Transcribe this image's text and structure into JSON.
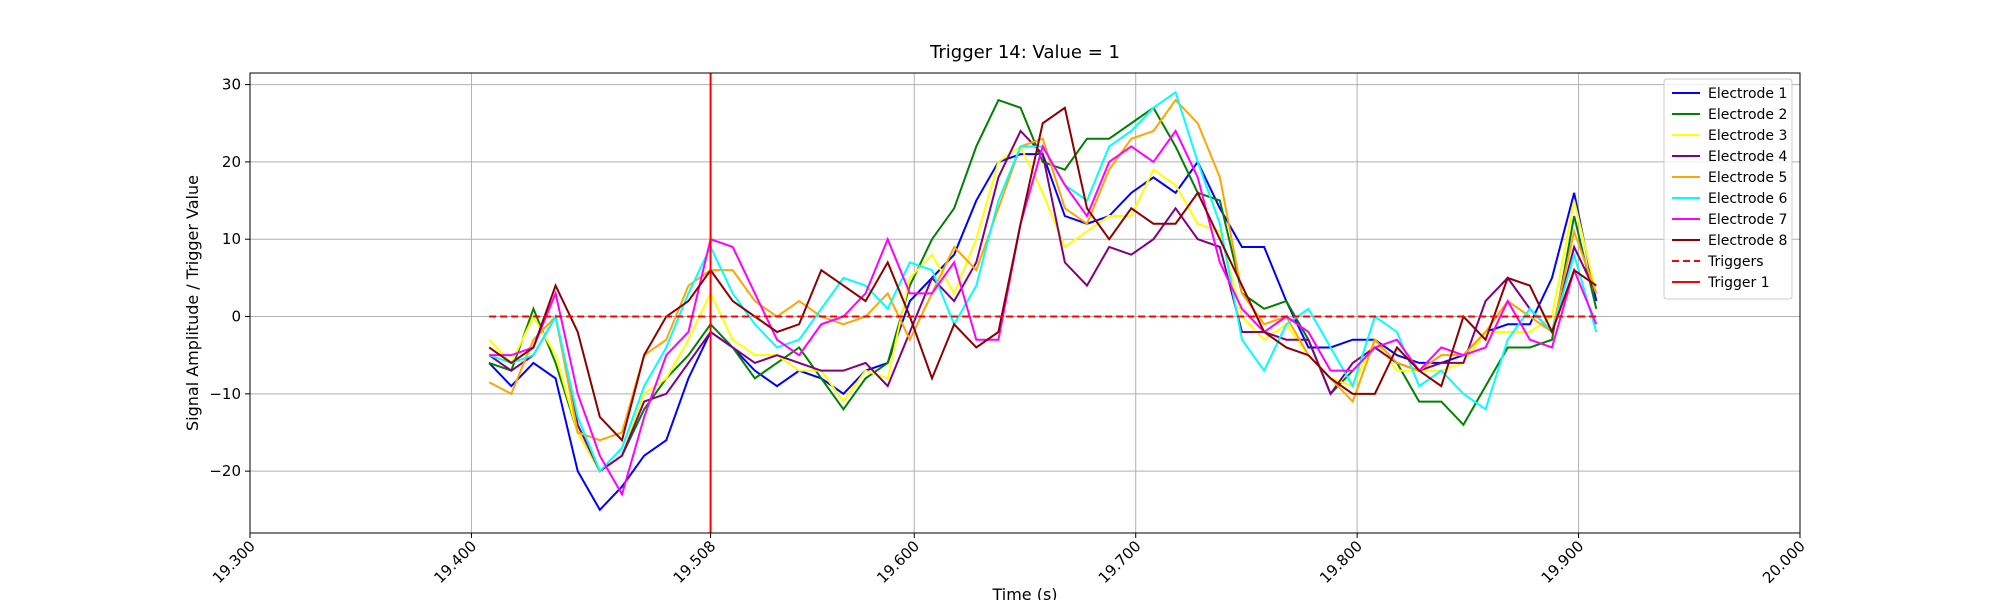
{
  "chart_data": {
    "type": "line",
    "title": "Trigger 14: Value = 1",
    "xlabel": "Time (s)",
    "ylabel": "Signal Amplitude / Trigger Value",
    "xlim": [
      19.3,
      20.0
    ],
    "xticks": [
      {
        "value": 19.3,
        "label": "19.300"
      },
      {
        "value": 19.4,
        "label": "19.400"
      },
      19.508,
      {
        "value": 19.6,
        "label": "19.600"
      },
      {
        "value": 19.7,
        "label": "19.700"
      },
      {
        "value": 19.8,
        "label": "19.800"
      },
      {
        "value": 19.9,
        "label": "19.900"
      },
      {
        "value": 20.0,
        "label": "20.000"
      }
    ],
    "ylim": [
      -28,
      31.5
    ],
    "yticks": [
      {
        "value": -20,
        "label": "−20"
      },
      {
        "value": -10,
        "label": "−10"
      },
      0,
      10,
      20,
      30
    ],
    "grid": true,
    "legend": "upper right",
    "x": [
      19.408,
      19.418,
      19.428,
      19.438,
      19.448,
      19.458,
      19.468,
      19.478,
      19.488,
      19.498,
      19.508,
      19.518,
      19.528,
      19.538,
      19.548,
      19.558,
      19.568,
      19.578,
      19.588,
      19.598,
      19.608,
      19.618,
      19.628,
      19.638,
      19.648,
      19.658,
      19.668,
      19.678,
      19.688,
      19.698,
      19.708,
      19.718,
      19.728,
      19.738,
      19.748,
      19.758,
      19.768,
      19.778,
      19.788,
      19.798,
      19.808,
      19.818,
      19.828,
      19.838,
      19.848,
      19.858,
      19.868,
      19.878,
      19.888,
      19.898,
      19.908
    ],
    "series": [
      {
        "name": "Electrode 1",
        "color": "blue",
        "values": [
          -6,
          -9,
          -6,
          -8,
          -20,
          -25,
          -22,
          -18,
          -16,
          -8,
          -2,
          -4,
          -7,
          -9,
          -7,
          -8,
          -10,
          -7,
          -6,
          2,
          5,
          8,
          15,
          20,
          21,
          21,
          13,
          12,
          13,
          16,
          18,
          16,
          20,
          14,
          9,
          9,
          2,
          -4,
          -4,
          -3,
          -3,
          -5,
          -6,
          -6,
          -5,
          -2,
          -1,
          -1,
          5,
          16,
          2
        ]
      },
      {
        "name": "Electrode 2",
        "color": "green",
        "values": [
          -6,
          -7,
          1,
          -6,
          -15,
          -20,
          -18,
          -12,
          -8,
          -5,
          -1,
          -4,
          -8,
          -6,
          -4,
          -8,
          -12,
          -8,
          -6,
          4,
          10,
          14,
          22,
          28,
          27,
          20,
          19,
          23,
          23,
          25,
          27,
          22,
          16,
          15,
          3,
          1,
          2,
          -3,
          -10,
          -7,
          -4,
          -6,
          -11,
          -11,
          -14,
          -9,
          -4,
          -4,
          -3,
          13,
          1
        ]
      },
      {
        "name": "Electrode 3",
        "color": "yellow",
        "values": [
          -3,
          -6,
          0,
          -5,
          -15,
          -20,
          -18,
          -10,
          -8,
          -3,
          3,
          -3,
          -5,
          -5,
          -7,
          -7,
          -11,
          -7,
          -8,
          5,
          8,
          3,
          10,
          20,
          22,
          16,
          9,
          11,
          13,
          13,
          19,
          17,
          12,
          11,
          0,
          -3,
          -1,
          -5,
          -8,
          -9,
          -3,
          -7,
          -7,
          -7,
          -6,
          -2,
          -2,
          -2,
          0,
          15,
          3
        ]
      },
      {
        "name": "Electrode 4",
        "color": "purple",
        "values": [
          -5,
          -7,
          -5,
          0,
          -14,
          -20,
          -18,
          -11,
          -10,
          -6,
          -2,
          -4,
          -6,
          -5,
          -6,
          -7,
          -7,
          -6,
          -9,
          -2,
          5,
          2,
          7,
          18,
          24,
          21,
          7,
          4,
          9,
          8,
          10,
          14,
          10,
          9,
          -2,
          -2,
          -3,
          -3,
          -10,
          -6,
          -4,
          -6,
          -7,
          -6,
          -6,
          2,
          5,
          1,
          -2,
          9,
          3
        ]
      },
      {
        "name": "Electrode 5",
        "color": "orange",
        "values": [
          -8.5,
          -10,
          -3,
          0,
          -15,
          -16,
          -15,
          -5,
          -3,
          4,
          6,
          6,
          2,
          0,
          2,
          0,
          -1,
          0,
          3,
          -3,
          3,
          9,
          6,
          14,
          22,
          23,
          14,
          12,
          19,
          23,
          24,
          28,
          25,
          18,
          3,
          -1,
          0,
          -5,
          -8,
          -11,
          -3,
          -6,
          -7,
          -5,
          -5,
          -2,
          2,
          0,
          -2,
          11,
          3
        ]
      },
      {
        "name": "Electrode 6",
        "color": "cyan",
        "values": [
          -5,
          -6,
          -5,
          0,
          -13,
          -20,
          -17,
          -9,
          -4,
          3,
          9,
          3,
          -1,
          -4,
          -3,
          1,
          5,
          4,
          1,
          7,
          6,
          -1,
          4,
          15,
          22,
          22,
          17,
          15,
          22,
          24,
          27,
          29,
          20,
          12,
          -3,
          -7,
          -1,
          1,
          -4,
          -9,
          0,
          -2,
          -9,
          -7,
          -10,
          -12,
          -3,
          1,
          -2,
          8,
          -2
        ]
      },
      {
        "name": "Electrode 7",
        "color": "magenta",
        "values": [
          -5,
          -5,
          -4,
          3,
          -10,
          -18,
          -23,
          -13,
          -5,
          -2,
          10,
          9,
          3,
          -3,
          -5,
          -1,
          0,
          3,
          10,
          3,
          3,
          7,
          -3,
          -3,
          12,
          22,
          17,
          13,
          20,
          22,
          20,
          24,
          18,
          7,
          1,
          -2,
          0,
          -2,
          -7,
          -7,
          -4,
          -3,
          -7,
          -4,
          -5,
          -4,
          2,
          -3,
          -4,
          6,
          -1
        ]
      },
      {
        "name": "Electrode 8",
        "color": "darkred",
        "values": [
          -4,
          -6,
          -4,
          4,
          -2,
          -13,
          -16,
          -5,
          0,
          2,
          6,
          2,
          0,
          -2,
          -1,
          6,
          4,
          2,
          7,
          0,
          -8,
          -1,
          -4,
          -2,
          12,
          25,
          27,
          14,
          10,
          14,
          12,
          12,
          16,
          10,
          4,
          -2,
          -4,
          -5,
          -8,
          -10,
          -10,
          -4,
          -7,
          -9,
          0,
          -3,
          5,
          4,
          -2,
          6,
          4
        ]
      },
      {
        "name": "Triggers",
        "color": "red",
        "dash": true,
        "x": [
          19.408,
          19.908
        ],
        "values": [
          0,
          0
        ]
      }
    ],
    "vlines": [
      {
        "name": "Trigger 1",
        "color": "red",
        "x": 19.508
      }
    ]
  }
}
